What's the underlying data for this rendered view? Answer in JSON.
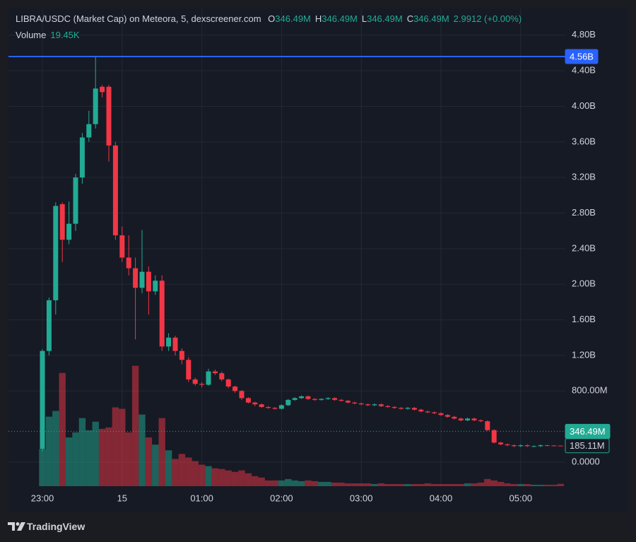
{
  "chart_data": {
    "type": "candlestick",
    "title": "LIBRA/USDC (Market Cap) on Meteora, 5, dexscreener.com",
    "ohlc_legend": [
      {
        "key": "O",
        "value": "346.49M"
      },
      {
        "key": "H",
        "value": "346.49M"
      },
      {
        "key": "L",
        "value": "346.49M"
      },
      {
        "key": "C",
        "value": "346.49M"
      }
    ],
    "change": "2.9912 (+0.00%)",
    "branding": "TradingView",
    "categories": [
      "23:00",
      null,
      null,
      null,
      null,
      null,
      null,
      null,
      null,
      null,
      null,
      null,
      "15",
      null,
      null,
      null,
      null,
      null,
      null,
      null,
      null,
      null,
      null,
      null,
      "01:00",
      null,
      null,
      null,
      null,
      null,
      null,
      null,
      null,
      null,
      null,
      null,
      "02:00",
      null,
      null,
      null,
      null,
      null,
      null,
      null,
      null,
      null,
      null,
      null,
      "03:00",
      null,
      null,
      null,
      null,
      null,
      null,
      null,
      null,
      null,
      null,
      null,
      "04:00",
      null,
      null,
      null,
      null,
      null,
      null,
      null,
      null,
      null,
      null,
      null,
      "05:00",
      null,
      null,
      null,
      null,
      null,
      null
    ],
    "open": [
      0.15,
      1.25,
      1.82,
      2.9,
      2.5,
      2.68,
      3.2,
      3.65,
      3.8,
      4.22,
      4.22,
      3.56,
      2.55,
      2.3,
      2.18,
      1.96,
      2.14,
      1.92,
      2.04,
      1.3,
      1.4,
      1.25,
      1.15,
      0.93,
      0.88,
      0.87,
      1.02,
      1.0,
      0.93,
      0.85,
      0.8,
      0.72,
      0.67,
      0.65,
      0.62,
      0.61,
      0.6,
      0.64,
      0.7,
      0.72,
      0.74,
      0.71,
      0.7,
      0.71,
      0.72,
      0.7,
      0.69,
      0.67,
      0.66,
      0.65,
      0.64,
      0.65,
      0.63,
      0.62,
      0.61,
      0.6,
      0.61,
      0.59,
      0.57,
      0.56,
      0.55,
      0.53,
      0.51,
      0.49,
      0.47,
      0.49,
      0.47,
      0.46,
      0.36,
      0.22,
      0.2,
      0.19,
      0.18,
      0.19,
      0.18,
      0.18,
      0.19,
      0.187,
      0.186
    ],
    "high": [
      1.27,
      1.85,
      2.92,
      2.92,
      2.93,
      3.24,
      3.7,
      3.95,
      4.56,
      4.24,
      4.24,
      3.6,
      2.65,
      2.55,
      2.3,
      2.61,
      2.2,
      2.1,
      2.1,
      1.45,
      1.42,
      1.28,
      1.18,
      0.95,
      0.9,
      1.05,
      1.04,
      1.02,
      0.94,
      0.86,
      0.81,
      0.73,
      0.68,
      0.66,
      0.63,
      0.62,
      0.65,
      0.71,
      0.73,
      0.75,
      0.75,
      0.72,
      0.72,
      0.73,
      0.73,
      0.71,
      0.7,
      0.68,
      0.67,
      0.66,
      0.66,
      0.66,
      0.64,
      0.63,
      0.62,
      0.62,
      0.62,
      0.6,
      0.58,
      0.57,
      0.56,
      0.54,
      0.52,
      0.5,
      0.5,
      0.5,
      0.48,
      0.47,
      0.37,
      0.23,
      0.21,
      0.2,
      0.2,
      0.2,
      0.19,
      0.2,
      0.195,
      0.19,
      0.187
    ],
    "low": [
      0.12,
      1.2,
      1.66,
      2.25,
      2.45,
      2.6,
      3.13,
      3.6,
      3.75,
      4.1,
      3.38,
      2.5,
      2.25,
      2.1,
      1.38,
      1.9,
      1.66,
      1.88,
      1.25,
      1.25,
      1.2,
      1.1,
      0.9,
      0.86,
      0.84,
      0.86,
      0.98,
      0.91,
      0.83,
      0.78,
      0.7,
      0.66,
      0.63,
      0.61,
      0.6,
      0.59,
      0.59,
      0.63,
      0.69,
      0.71,
      0.7,
      0.69,
      0.69,
      0.7,
      0.69,
      0.68,
      0.66,
      0.65,
      0.64,
      0.63,
      0.63,
      0.62,
      0.61,
      0.6,
      0.59,
      0.59,
      0.58,
      0.56,
      0.55,
      0.54,
      0.52,
      0.5,
      0.48,
      0.46,
      0.46,
      0.46,
      0.45,
      0.35,
      0.21,
      0.19,
      0.18,
      0.17,
      0.17,
      0.17,
      0.17,
      0.17,
      0.18,
      0.18,
      0.184
    ],
    "close": [
      1.25,
      1.82,
      2.88,
      2.5,
      2.68,
      3.2,
      3.65,
      3.8,
      4.2,
      4.16,
      3.56,
      2.55,
      2.3,
      2.18,
      1.96,
      2.14,
      1.92,
      2.04,
      1.3,
      1.4,
      1.25,
      1.15,
      0.93,
      0.88,
      0.87,
      1.02,
      1.0,
      0.93,
      0.85,
      0.8,
      0.72,
      0.67,
      0.65,
      0.62,
      0.61,
      0.6,
      0.64,
      0.7,
      0.72,
      0.74,
      0.71,
      0.7,
      0.71,
      0.72,
      0.7,
      0.69,
      0.67,
      0.66,
      0.65,
      0.64,
      0.65,
      0.63,
      0.62,
      0.61,
      0.6,
      0.61,
      0.59,
      0.57,
      0.56,
      0.55,
      0.53,
      0.51,
      0.49,
      0.47,
      0.49,
      0.47,
      0.46,
      0.36,
      0.22,
      0.2,
      0.19,
      0.18,
      0.19,
      0.18,
      0.18,
      0.19,
      0.187,
      0.186,
      0.18511
    ],
    "up_color": "#22ab94",
    "down_color": "#f23645",
    "volume": {
      "name": "Volume",
      "current_label": "19.45K",
      "values": [
        312,
        582,
        630,
        948,
        408,
        450,
        570,
        468,
        540,
        480,
        492,
        660,
        648,
        450,
        1008,
        600,
        408,
        348,
        570,
        300,
        228,
        270,
        240,
        210,
        180,
        168,
        150,
        144,
        132,
        120,
        132,
        108,
        84,
        72,
        48,
        48,
        48,
        60,
        48,
        42,
        48,
        42,
        36,
        36,
        30,
        30,
        24,
        24,
        24,
        24,
        18,
        24,
        18,
        18,
        18,
        18,
        18,
        18,
        24,
        18,
        18,
        18,
        18,
        18,
        24,
        24,
        30,
        60,
        48,
        36,
        24,
        18,
        18,
        18,
        12,
        12,
        12,
        12,
        19.45
      ],
      "vlim": [
        0,
        4000
      ]
    },
    "ylim": [
      -0.27,
      5.1
    ],
    "yticks": [
      {
        "value": 4.8,
        "label": "4.80B"
      },
      {
        "value": 4.4,
        "label": "4.40B"
      },
      {
        "value": 4.0,
        "label": "4.00B"
      },
      {
        "value": 3.6,
        "label": "3.60B"
      },
      {
        "value": 3.2,
        "label": "3.20B"
      },
      {
        "value": 2.8,
        "label": "2.80B"
      },
      {
        "value": 2.4,
        "label": "2.40B"
      },
      {
        "value": 2.0,
        "label": "2.00B"
      },
      {
        "value": 1.6,
        "label": "1.60B"
      },
      {
        "value": 1.2,
        "label": "1.20B"
      },
      {
        "value": 0.8,
        "label": "800.00M"
      },
      {
        "value": 0,
        "label": "0.0000"
      }
    ],
    "price_lines": [
      {
        "value": 4.56,
        "label": "4.56B",
        "color": "#2962ff",
        "style": "solid"
      },
      {
        "value": 0.34649,
        "label": "346.49M",
        "color": "#22ab94",
        "style": "dotted"
      },
      {
        "value": 0.18511,
        "label": "185.11M",
        "color": "#22ab94",
        "style": "outline"
      }
    ],
    "grid": true
  }
}
